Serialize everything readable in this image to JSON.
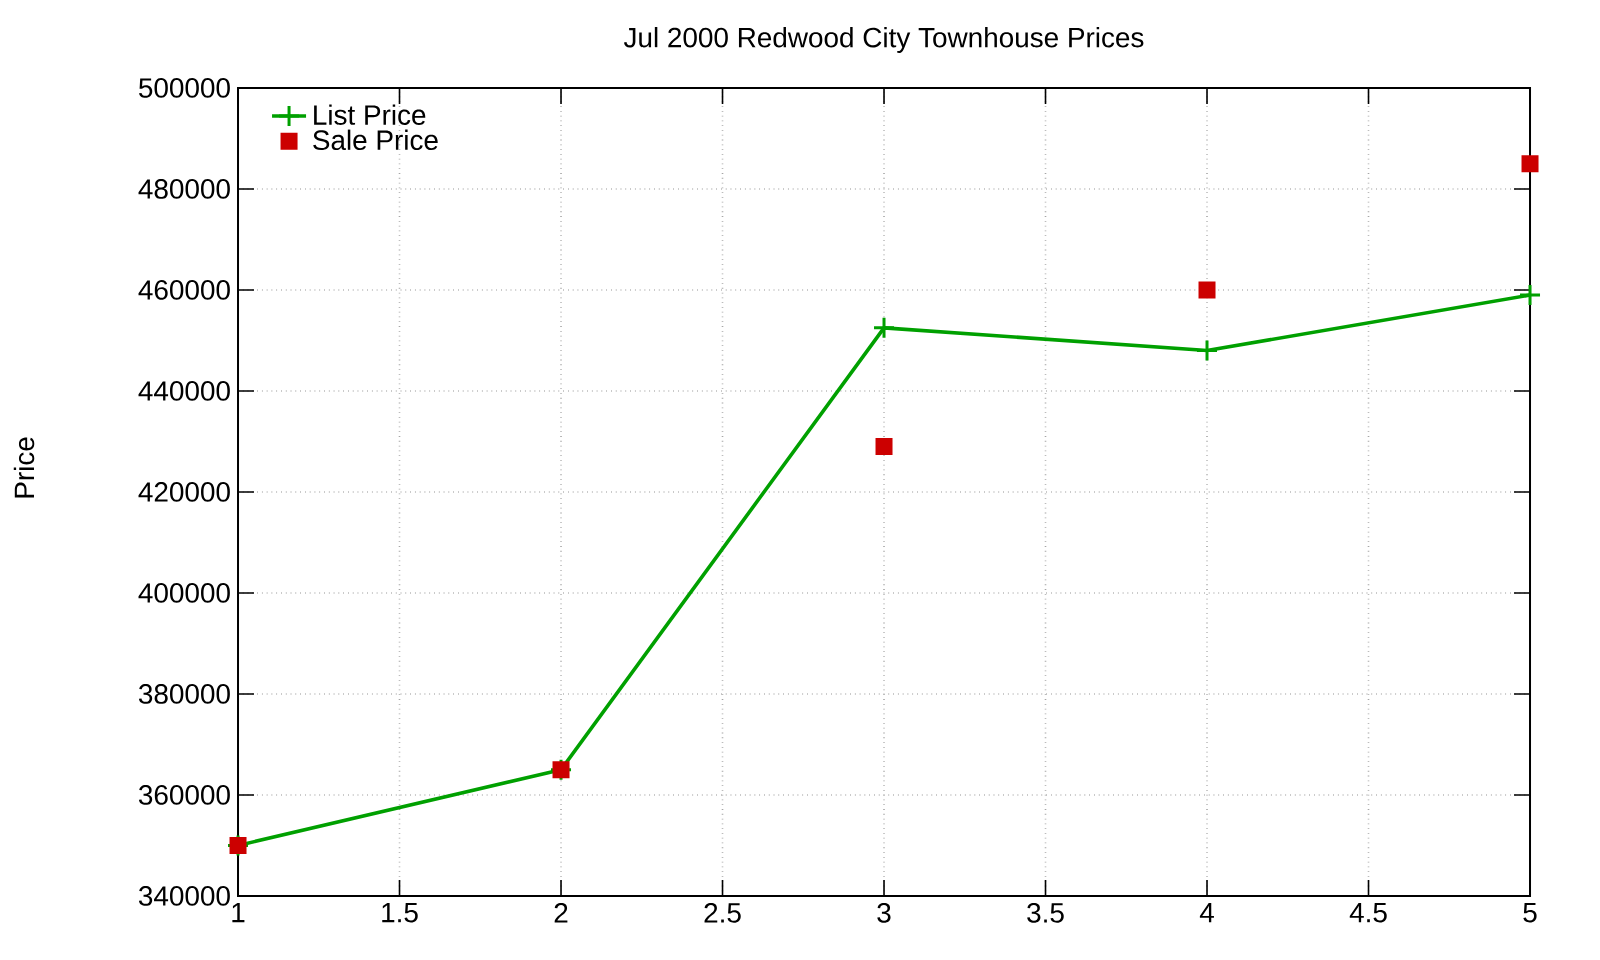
{
  "chart_data": {
    "type": "line",
    "title": "Jul 2000 Redwood City Townhouse Prices",
    "ylabel": "Price",
    "x": [
      1,
      2,
      3,
      4,
      5
    ],
    "series": [
      {
        "name": "List Price",
        "color": "#00a000",
        "marker": "cross",
        "line_style": "solid",
        "values": [
          350000,
          365000,
          452500,
          448000,
          459000
        ]
      },
      {
        "name": "Sale Price",
        "type": "scatter",
        "color": "#cc0000",
        "marker": "square",
        "values": [
          350000,
          365000,
          429000,
          460000,
          485000
        ]
      }
    ],
    "xlim": [
      1,
      5
    ],
    "xticks": [
      1,
      1.5,
      2,
      2.5,
      3,
      3.5,
      4,
      4.5,
      5
    ],
    "ylim": [
      340000,
      500000
    ],
    "yticks": [
      340000,
      360000,
      380000,
      400000,
      420000,
      440000,
      460000,
      480000,
      500000
    ],
    "grid": true,
    "legend": "top left"
  }
}
